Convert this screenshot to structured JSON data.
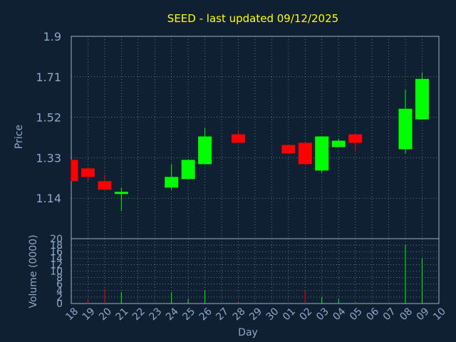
{
  "chart_data": {
    "type": "candlestick",
    "title": "SEED - last updated 09/12/2025",
    "xlabel": "Day",
    "ylabel_price": "Price",
    "ylabel_volume": "Volume (0000)",
    "price_yticks": [
      "1.14",
      "1.33",
      "1.52",
      "1.71",
      "1.9"
    ],
    "price_ylim": [
      0.95,
      1.9
    ],
    "volume_yticks": [
      "0",
      "2",
      "4",
      "6",
      "8",
      "10",
      "12",
      "14",
      "16",
      "18",
      "20"
    ],
    "volume_ylim": [
      0,
      20
    ],
    "x_labels": [
      "18",
      "19",
      "20",
      "21",
      "22",
      "23",
      "24",
      "25",
      "26",
      "27",
      "28",
      "29",
      "30",
      "01",
      "02",
      "03",
      "04",
      "05",
      "06",
      "07",
      "08",
      "09",
      "10"
    ],
    "candles": [
      {
        "day": "18",
        "open": 1.32,
        "close": 1.22,
        "high": 1.32,
        "low": 1.22,
        "volume": 0
      },
      {
        "day": "19",
        "open": 1.28,
        "close": 1.24,
        "high": 1.28,
        "low": 1.22,
        "volume": 1.5
      },
      {
        "day": "20",
        "open": 1.22,
        "close": 1.18,
        "high": 1.25,
        "low": 1.18,
        "volume": 4.5
      },
      {
        "day": "21",
        "open": 1.16,
        "close": 1.17,
        "high": 1.19,
        "low": 1.08,
        "volume": 3.5
      },
      {
        "day": "24",
        "open": 1.19,
        "close": 1.24,
        "high": 1.3,
        "low": 1.18,
        "volume": 3.5
      },
      {
        "day": "25",
        "open": 1.23,
        "close": 1.32,
        "high": 1.32,
        "low": 1.23,
        "volume": 1.5
      },
      {
        "day": "26",
        "open": 1.3,
        "close": 1.43,
        "high": 1.47,
        "low": 1.3,
        "volume": 4.0
      },
      {
        "day": "28",
        "open": 1.44,
        "close": 1.4,
        "high": 1.46,
        "low": 1.4,
        "volume": 0.5
      },
      {
        "day": "01",
        "open": 1.39,
        "close": 1.35,
        "high": 1.39,
        "low": 1.35,
        "volume": 0.2
      },
      {
        "day": "02",
        "open": 1.4,
        "close": 1.3,
        "high": 1.4,
        "low": 1.3,
        "volume": 4.0
      },
      {
        "day": "03",
        "open": 1.27,
        "close": 1.43,
        "high": 1.43,
        "low": 1.26,
        "volume": 2.0
      },
      {
        "day": "04",
        "open": 1.38,
        "close": 1.41,
        "high": 1.42,
        "low": 1.38,
        "volume": 1.5
      },
      {
        "day": "05",
        "open": 1.44,
        "close": 1.4,
        "high": 1.44,
        "low": 1.36,
        "volume": 0.5
      },
      {
        "day": "08",
        "open": 1.37,
        "close": 1.56,
        "high": 1.65,
        "low": 1.35,
        "volume": 18.0
      },
      {
        "day": "09",
        "open": 1.51,
        "close": 1.7,
        "high": 1.73,
        "low": 1.51,
        "volume": 14.0
      }
    ],
    "grid": true,
    "colors": {
      "background": "#0f2033",
      "up": "#00ff00",
      "down": "#ff0000",
      "title": "#ffff00",
      "axis_text": "#8fa8c8",
      "grid": "#c8d0d8",
      "frame": "#9fb0c8"
    }
  }
}
